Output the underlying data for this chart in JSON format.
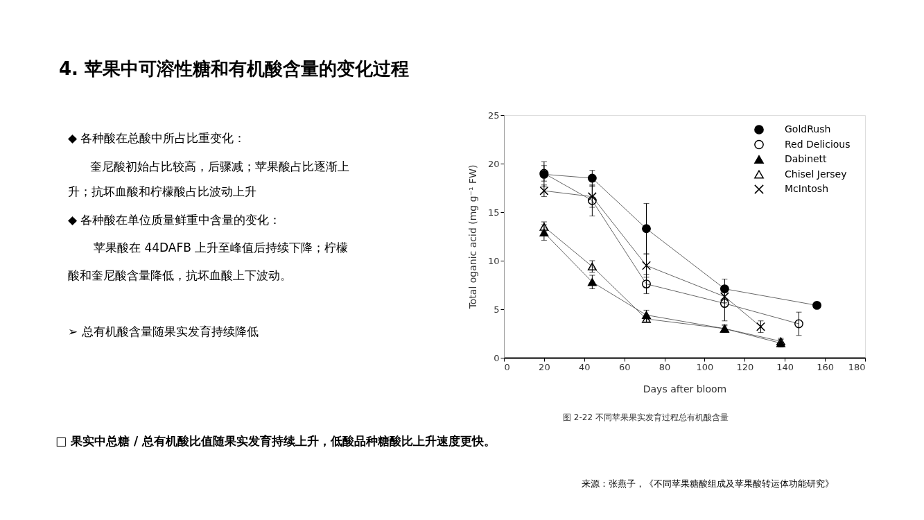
{
  "chart_data": {
    "type": "line",
    "title": "4. 苹果中可溶性糖和有机酸含量的变化过程",
    "xlabel": "Days after bloom",
    "ylabel": "Total oganic acid (mg g⁻¹ FW)",
    "xlim": [
      0,
      180
    ],
    "xticks": [
      0,
      20,
      40,
      60,
      80,
      100,
      120,
      140,
      160,
      180
    ],
    "ylim": [
      0,
      25
    ],
    "yticks": [
      0,
      5,
      10,
      15,
      20,
      25
    ],
    "grid": false,
    "legend": "top right",
    "line_style": "solid",
    "series": [
      {
        "name": "GoldRush",
        "color": "#000000",
        "marker": "circle",
        "x": [
          20,
          44,
          71,
          110,
          156
        ],
        "values": [
          18.9,
          18.5,
          13.3,
          7.1,
          5.4
        ],
        "errors": [
          1.3,
          0.8,
          2.6,
          1.0,
          null
        ]
      },
      {
        "name": "Red Delicious",
        "color": "#000000",
        "marker": "circle",
        "x": [
          20,
          44,
          71,
          110,
          147
        ],
        "values": [
          19.0,
          16.2,
          7.6,
          5.6,
          3.5
        ],
        "errors": [
          0.8,
          1.6,
          1.0,
          1.8,
          1.2
        ]
      },
      {
        "name": "Dabinett",
        "color": "#000000",
        "marker": "triangle",
        "x": [
          20,
          44,
          71,
          110,
          138
        ],
        "values": [
          12.9,
          7.8,
          4.4,
          3.0,
          1.5
        ],
        "errors": [
          0.8,
          0.7,
          0.5,
          0.4,
          0.4
        ]
      },
      {
        "name": "Chisel Jersey",
        "color": "#000000",
        "marker": "triangle",
        "x": [
          20,
          44,
          71,
          110,
          138
        ],
        "values": [
          13.5,
          9.4,
          4.0,
          3.0,
          1.7
        ],
        "errors": [
          0.5,
          0.6,
          0.3,
          0.3,
          0.3
        ]
      },
      {
        "name": "McIntosh",
        "color": "#000000",
        "marker": "cross",
        "x": [
          20,
          44,
          71,
          110,
          128
        ],
        "values": [
          17.2,
          16.6,
          9.5,
          6.3,
          3.2
        ],
        "errors": [
          0.6,
          1.1,
          1.2,
          0.6,
          0.6
        ]
      }
    ],
    "annotations": [
      "◆  各种酸在总酸中所占比重变化：",
      "奎尼酸初始占比较高，后骤减；苹果酸占比逐渐上",
      "升；抗坏血酸和柠檬酸占比波动上升",
      "◆  各种酸在单位质量鲜重中含量的变化：",
      "苹果酸在 44DAFB 上升至峰值后持续下降；柠檬",
      "酸和奎尼酸含量降低，抗坏血酸上下波动。",
      "➢   总有机酸含量随果实发育持续降低",
      "图 2-22   不同苹果果实发育过程总有机酸含量",
      "□  果实中总糖 / 总有机酸比值随果实发育持续上升，低酸品种糖酸比上升速度更快。",
      "来源：张燕子，《不同苹果糖酸组成及苹果酸转运体功能研究》"
    ]
  }
}
